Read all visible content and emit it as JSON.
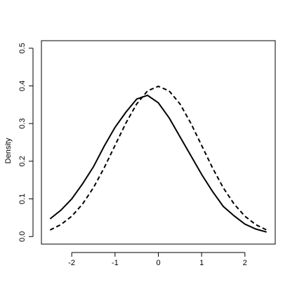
{
  "chart_data": {
    "type": "line",
    "y_label": "Density",
    "x": [
      -2.5,
      -2.25,
      -2,
      -1.75,
      -1.5,
      -1.25,
      -1,
      -0.75,
      -0.5,
      -0.25,
      0,
      0.25,
      0.5,
      0.75,
      1,
      1.25,
      1.5,
      1.75,
      2,
      2.25,
      2.5
    ],
    "series": [
      {
        "color": "#000000",
        "linestyle": "solid",
        "values": [
          0.047,
          0.07,
          0.1,
          0.14,
          0.185,
          0.24,
          0.29,
          0.33,
          0.365,
          0.375,
          0.355,
          0.315,
          0.265,
          0.215,
          0.165,
          0.12,
          0.08,
          0.055,
          0.033,
          0.02,
          0.012
        ]
      },
      {
        "color": "#000000",
        "linestyle": "dashed",
        "values": [
          0.0175,
          0.0317,
          0.054,
          0.0863,
          0.1295,
          0.1826,
          0.242,
          0.3011,
          0.3521,
          0.3867,
          0.3989,
          0.3867,
          0.3521,
          0.3011,
          0.242,
          0.1826,
          0.1295,
          0.0863,
          0.054,
          0.0317,
          0.0175
        ]
      }
    ],
    "xlim": [
      -2.7,
      2.7
    ],
    "ylim": [
      -0.02,
      0.52
    ],
    "xticks": [
      -2,
      -1,
      0,
      1,
      2
    ],
    "yticks": [
      {
        "value": 0,
        "label": "0.0"
      },
      0.1,
      0.2,
      0.3,
      0.4,
      0.5
    ],
    "grid": false
  }
}
